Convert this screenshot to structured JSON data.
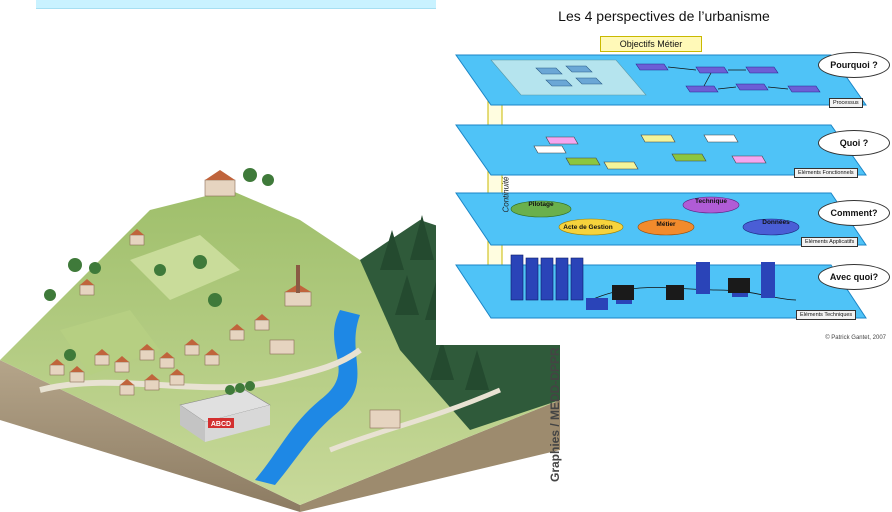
{
  "diagram": {
    "title": "Les 4 perspectives de l’urbanisme",
    "objectives_label": "Objectifs Métier",
    "continuity_label": "Continuité",
    "layers": [
      {
        "label": "Processus",
        "question": "Pourquoi ?"
      },
      {
        "label": "Eléments Fonctionnels",
        "question": "Quoi ?"
      },
      {
        "label": "Eléments Applicatifs",
        "question": "Comment?"
      },
      {
        "label": "Eléments Techniques",
        "question": "Avec quoi?"
      }
    ],
    "applications": [
      "Pilotage",
      "Acte de Gestion",
      "Métier",
      "Technique",
      "Données"
    ],
    "copyright": "© Patrick Gantet, 2007"
  },
  "illustration": {
    "building_sign": "ABCD",
    "credit": "Graphies / MEDD-DPPR"
  },
  "colors": {
    "layer_blue": "#4fc3f7",
    "pale_banner": "#c9f2ff",
    "grass": "#a9c97a",
    "forest": "#2f5a3a",
    "river": "#1e88e5"
  }
}
